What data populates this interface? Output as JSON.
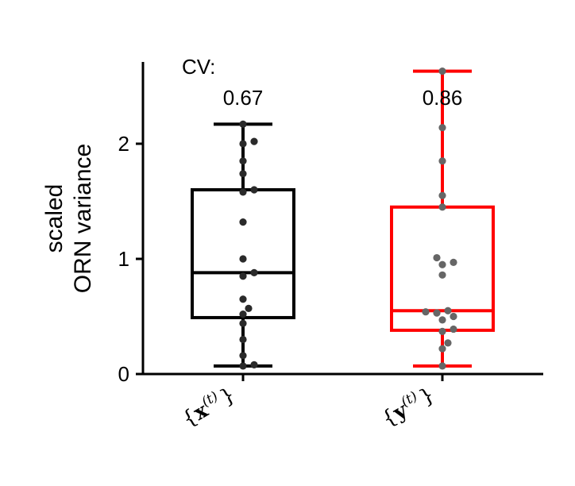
{
  "chart_data": {
    "type": "box",
    "ylabel_lines": [
      "scaled",
      "ORN variance"
    ],
    "ylim": [
      0,
      2.7
    ],
    "yticks": [
      0,
      1,
      2
    ],
    "cv_header": "CV:",
    "colors": {
      "axis": "#000000",
      "point": "#4a4a4a",
      "x_box": "#000000",
      "y_box": "#ff0000"
    },
    "series": [
      {
        "label_brace_open": "{",
        "label_var": "x",
        "label_sup": "(t)",
        "label_brace_close": "}",
        "color": "#000000",
        "point_color": "#2a2a2a",
        "cv": "0.67",
        "whisker_low": 0.07,
        "q1": 0.49,
        "median": 0.88,
        "q3": 1.6,
        "whisker_high": 2.17,
        "points": [
          2.17,
          2.02,
          2.0,
          1.85,
          1.74,
          1.6,
          1.58,
          1.32,
          1.0,
          0.88,
          0.85,
          0.65,
          0.57,
          0.52,
          0.44,
          0.3,
          0.16,
          0.08,
          0.07
        ]
      },
      {
        "label_brace_open": "{",
        "label_var": "y",
        "label_sup": "(t)",
        "label_brace_close": "}",
        "color": "#ff0000",
        "point_color": "#666666",
        "cv": "0.86",
        "whisker_low": 0.07,
        "q1": 0.38,
        "median": 0.55,
        "q3": 1.45,
        "whisker_high": 2.63,
        "points": [
          2.63,
          2.14,
          1.85,
          1.55,
          1.45,
          1.01,
          0.97,
          0.95,
          0.86,
          0.55,
          0.54,
          0.53,
          0.5,
          0.47,
          0.39,
          0.37,
          0.27,
          0.22,
          0.07
        ]
      }
    ]
  }
}
